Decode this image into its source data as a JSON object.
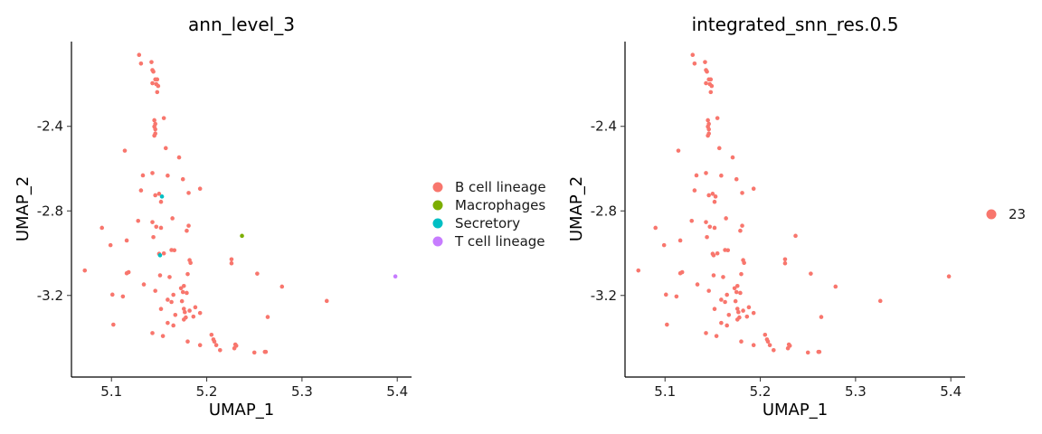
{
  "chart_data": [
    {
      "type": "scatter",
      "title": "ann_level_3",
      "xlabel": "UMAP_1",
      "ylabel": "UMAP_2",
      "xlim": [
        5.058,
        5.415
      ],
      "ylim": [
        -3.586,
        -1.999
      ],
      "xticks": [
        "5.1",
        "5.2",
        "5.3",
        "5.4"
      ],
      "xtick_values": [
        5.1,
        5.2,
        5.3,
        5.4
      ],
      "yticks": [
        "-2.4",
        "-2.8",
        "-3.2"
      ],
      "ytick_values": [
        -2.4,
        -2.8,
        -3.2
      ],
      "grid": false,
      "legend_position": "right",
      "series": [
        {
          "name": "B cell lineage",
          "color": "#F8766D",
          "points": [
            [
              5.129,
              -2.062
            ],
            [
              5.131,
              -2.103
            ],
            [
              5.142,
              -2.096
            ],
            [
              5.143,
              -2.134
            ],
            [
              5.144,
              -2.141
            ],
            [
              5.146,
              -2.178
            ],
            [
              5.148,
              -2.178
            ],
            [
              5.143,
              -2.196
            ],
            [
              5.147,
              -2.2
            ],
            [
              5.149,
              -2.209
            ],
            [
              5.148,
              -2.238
            ],
            [
              5.155,
              -2.361
            ],
            [
              5.145,
              -2.371
            ],
            [
              5.146,
              -2.388
            ],
            [
              5.145,
              -2.401
            ],
            [
              5.146,
              -2.414
            ],
            [
              5.146,
              -2.434
            ],
            [
              5.145,
              -2.444
            ],
            [
              5.157,
              -2.503
            ],
            [
              5.114,
              -2.515
            ],
            [
              5.171,
              -2.547
            ],
            [
              5.133,
              -2.632
            ],
            [
              5.143,
              -2.621
            ],
            [
              5.159,
              -2.633
            ],
            [
              5.175,
              -2.65
            ],
            [
              5.131,
              -2.703
            ],
            [
              5.15,
              -2.719
            ],
            [
              5.181,
              -2.715
            ],
            [
              5.193,
              -2.695
            ],
            [
              5.146,
              -2.726
            ],
            [
              5.152,
              -2.757
            ],
            [
              5.143,
              -2.853
            ],
            [
              5.164,
              -2.835
            ],
            [
              5.128,
              -2.847
            ],
            [
              5.147,
              -2.875
            ],
            [
              5.152,
              -2.88
            ],
            [
              5.181,
              -2.87
            ],
            [
              5.179,
              -2.894
            ],
            [
              5.09,
              -2.88
            ],
            [
              5.144,
              -2.924
            ],
            [
              5.116,
              -2.94
            ],
            [
              5.099,
              -2.962
            ],
            [
              5.163,
              -2.985
            ],
            [
              5.166,
              -2.986
            ],
            [
              5.15,
              -3.003
            ],
            [
              5.155,
              -3.001
            ],
            [
              5.226,
              -3.029
            ],
            [
              5.182,
              -3.033
            ],
            [
              5.183,
              -3.046
            ],
            [
              5.226,
              -3.048
            ],
            [
              5.118,
              -3.09
            ],
            [
              5.116,
              -3.095
            ],
            [
              5.072,
              -3.082
            ],
            [
              5.253,
              -3.097
            ],
            [
              5.151,
              -3.105
            ],
            [
              5.161,
              -3.113
            ],
            [
              5.18,
              -3.099
            ],
            [
              5.176,
              -3.155
            ],
            [
              5.134,
              -3.148
            ],
            [
              5.173,
              -3.166
            ],
            [
              5.175,
              -3.184
            ],
            [
              5.146,
              -3.178
            ],
            [
              5.279,
              -3.158
            ],
            [
              5.101,
              -3.196
            ],
            [
              5.112,
              -3.205
            ],
            [
              5.179,
              -3.188
            ],
            [
              5.165,
              -3.197
            ],
            [
              5.159,
              -3.22
            ],
            [
              5.174,
              -3.227
            ],
            [
              5.163,
              -3.231
            ],
            [
              5.326,
              -3.226
            ],
            [
              5.152,
              -3.264
            ],
            [
              5.176,
              -3.263
            ],
            [
              5.188,
              -3.256
            ],
            [
              5.177,
              -3.279
            ],
            [
              5.182,
              -3.272
            ],
            [
              5.193,
              -3.283
            ],
            [
              5.167,
              -3.292
            ],
            [
              5.186,
              -3.3
            ],
            [
              5.178,
              -3.304
            ],
            [
              5.264,
              -3.302
            ],
            [
              5.159,
              -3.33
            ],
            [
              5.102,
              -3.338
            ],
            [
              5.176,
              -3.314
            ],
            [
              5.165,
              -3.342
            ],
            [
              5.143,
              -3.378
            ],
            [
              5.154,
              -3.392
            ],
            [
              5.205,
              -3.386
            ],
            [
              5.18,
              -3.418
            ],
            [
              5.193,
              -3.435
            ],
            [
              5.207,
              -3.408
            ],
            [
              5.208,
              -3.418
            ],
            [
              5.21,
              -3.435
            ],
            [
              5.214,
              -3.459
            ],
            [
              5.231,
              -3.438
            ],
            [
              5.229,
              -3.45
            ],
            [
              5.23,
              -3.432
            ],
            [
              5.25,
              -3.47
            ],
            [
              5.261,
              -3.467
            ],
            [
              5.262,
              -3.467
            ]
          ]
        },
        {
          "name": "Macrophages",
          "color": "#7CAE00",
          "points": [
            [
              5.237,
              -2.918
            ]
          ]
        },
        {
          "name": "Secretory",
          "color": "#00BFC4",
          "points": [
            [
              5.153,
              -2.732
            ],
            [
              5.151,
              -3.01
            ]
          ]
        },
        {
          "name": "T cell lineage",
          "color": "#C77CFF",
          "points": [
            [
              5.398,
              -3.11
            ]
          ]
        }
      ]
    },
    {
      "type": "scatter",
      "title": "integrated_snn_res.0.5",
      "xlabel": "UMAP_1",
      "ylabel": "UMAP_2",
      "xlim": [
        5.058,
        5.415
      ],
      "ylim": [
        -3.586,
        -1.999
      ],
      "xticks": [
        "5.1",
        "5.2",
        "5.3",
        "5.4"
      ],
      "xtick_values": [
        5.1,
        5.2,
        5.3,
        5.4
      ],
      "yticks": [
        "-2.4",
        "-2.8",
        "-3.2"
      ],
      "ytick_values": [
        -2.4,
        -2.8,
        -3.2
      ],
      "grid": false,
      "legend_position": "right",
      "series": [
        {
          "name": "23",
          "color": "#F8766D",
          "points": [
            [
              5.129,
              -2.062
            ],
            [
              5.131,
              -2.103
            ],
            [
              5.142,
              -2.096
            ],
            [
              5.143,
              -2.134
            ],
            [
              5.144,
              -2.141
            ],
            [
              5.146,
              -2.178
            ],
            [
              5.148,
              -2.178
            ],
            [
              5.143,
              -2.196
            ],
            [
              5.147,
              -2.2
            ],
            [
              5.149,
              -2.209
            ],
            [
              5.148,
              -2.238
            ],
            [
              5.155,
              -2.361
            ],
            [
              5.145,
              -2.371
            ],
            [
              5.146,
              -2.388
            ],
            [
              5.145,
              -2.401
            ],
            [
              5.146,
              -2.414
            ],
            [
              5.146,
              -2.434
            ],
            [
              5.145,
              -2.444
            ],
            [
              5.157,
              -2.503
            ],
            [
              5.114,
              -2.515
            ],
            [
              5.171,
              -2.547
            ],
            [
              5.133,
              -2.632
            ],
            [
              5.143,
              -2.621
            ],
            [
              5.159,
              -2.633
            ],
            [
              5.175,
              -2.65
            ],
            [
              5.131,
              -2.703
            ],
            [
              5.15,
              -2.719
            ],
            [
              5.181,
              -2.715
            ],
            [
              5.193,
              -2.695
            ],
            [
              5.146,
              -2.726
            ],
            [
              5.152,
              -2.757
            ],
            [
              5.143,
              -2.853
            ],
            [
              5.164,
              -2.835
            ],
            [
              5.128,
              -2.847
            ],
            [
              5.147,
              -2.875
            ],
            [
              5.152,
              -2.88
            ],
            [
              5.181,
              -2.87
            ],
            [
              5.179,
              -2.894
            ],
            [
              5.09,
              -2.88
            ],
            [
              5.144,
              -2.924
            ],
            [
              5.116,
              -2.94
            ],
            [
              5.099,
              -2.962
            ],
            [
              5.163,
              -2.985
            ],
            [
              5.166,
              -2.986
            ],
            [
              5.15,
              -3.003
            ],
            [
              5.155,
              -3.001
            ],
            [
              5.226,
              -3.029
            ],
            [
              5.182,
              -3.033
            ],
            [
              5.183,
              -3.046
            ],
            [
              5.226,
              -3.048
            ],
            [
              5.118,
              -3.09
            ],
            [
              5.116,
              -3.095
            ],
            [
              5.072,
              -3.082
            ],
            [
              5.253,
              -3.097
            ],
            [
              5.151,
              -3.105
            ],
            [
              5.161,
              -3.113
            ],
            [
              5.18,
              -3.099
            ],
            [
              5.176,
              -3.155
            ],
            [
              5.134,
              -3.148
            ],
            [
              5.173,
              -3.166
            ],
            [
              5.175,
              -3.184
            ],
            [
              5.146,
              -3.178
            ],
            [
              5.279,
              -3.158
            ],
            [
              5.101,
              -3.196
            ],
            [
              5.112,
              -3.205
            ],
            [
              5.179,
              -3.188
            ],
            [
              5.165,
              -3.197
            ],
            [
              5.159,
              -3.22
            ],
            [
              5.174,
              -3.227
            ],
            [
              5.163,
              -3.231
            ],
            [
              5.326,
              -3.226
            ],
            [
              5.152,
              -3.264
            ],
            [
              5.176,
              -3.263
            ],
            [
              5.188,
              -3.256
            ],
            [
              5.177,
              -3.279
            ],
            [
              5.182,
              -3.272
            ],
            [
              5.193,
              -3.283
            ],
            [
              5.167,
              -3.292
            ],
            [
              5.186,
              -3.3
            ],
            [
              5.178,
              -3.304
            ],
            [
              5.264,
              -3.302
            ],
            [
              5.159,
              -3.33
            ],
            [
              5.102,
              -3.338
            ],
            [
              5.176,
              -3.314
            ],
            [
              5.165,
              -3.342
            ],
            [
              5.143,
              -3.378
            ],
            [
              5.154,
              -3.392
            ],
            [
              5.205,
              -3.386
            ],
            [
              5.18,
              -3.418
            ],
            [
              5.193,
              -3.435
            ],
            [
              5.207,
              -3.408
            ],
            [
              5.208,
              -3.418
            ],
            [
              5.21,
              -3.435
            ],
            [
              5.214,
              -3.459
            ],
            [
              5.231,
              -3.438
            ],
            [
              5.229,
              -3.45
            ],
            [
              5.23,
              -3.432
            ],
            [
              5.25,
              -3.47
            ],
            [
              5.261,
              -3.467
            ],
            [
              5.262,
              -3.467
            ],
            [
              5.237,
              -2.918
            ],
            [
              5.153,
              -2.732
            ],
            [
              5.151,
              -3.01
            ],
            [
              5.398,
              -3.11
            ]
          ]
        }
      ]
    }
  ]
}
